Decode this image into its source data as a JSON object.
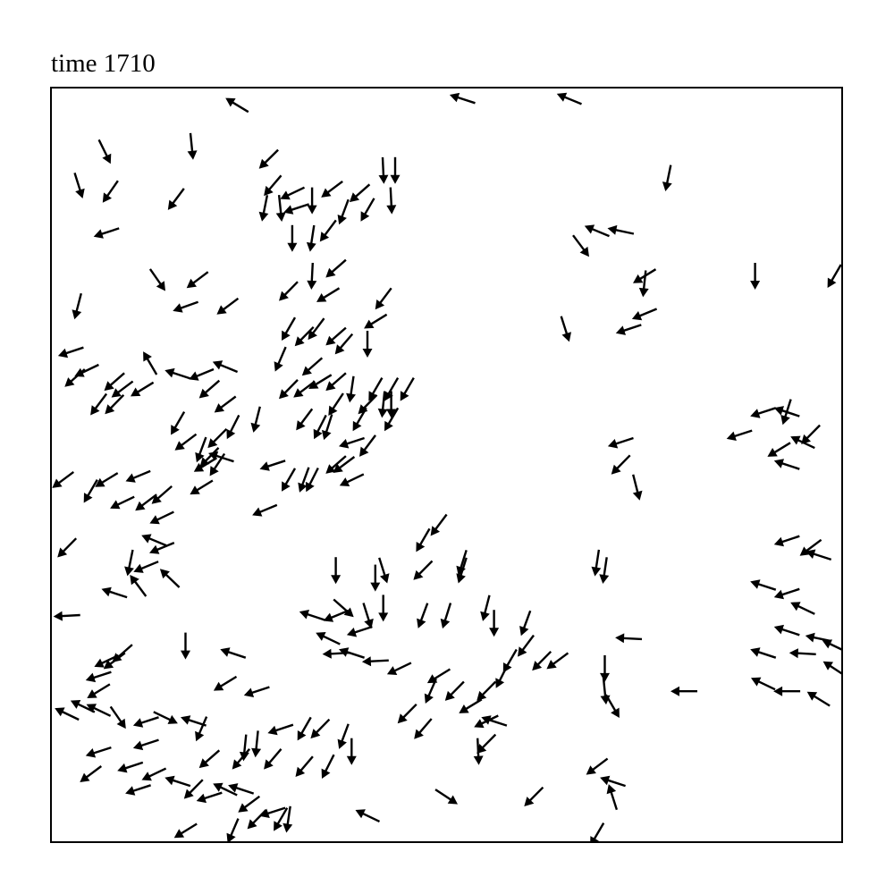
{
  "chart_data": {
    "type": "quiver",
    "title": "time 1710",
    "xlabel": "",
    "ylabel": "",
    "xlim": [
      0,
      1
    ],
    "ylim": [
      0,
      1
    ],
    "grid": false,
    "show_ticks": false,
    "arrow_color": "#000000",
    "frame_color": "#000000",
    "arrows": [
      [
        0.235,
        0.977,
        -0.85,
        0.52
      ],
      [
        0.52,
        0.985,
        -0.95,
        0.31
      ],
      [
        0.655,
        0.985,
        -0.92,
        0.38
      ],
      [
        0.068,
        0.915,
        0.44,
        -0.9
      ],
      [
        0.178,
        0.922,
        0.1,
        -0.99
      ],
      [
        0.035,
        0.87,
        0.3,
        -0.95
      ],
      [
        0.075,
        0.862,
        -0.57,
        -0.82
      ],
      [
        0.158,
        0.852,
        -0.6,
        -0.8
      ],
      [
        0.07,
        0.808,
        -0.95,
        -0.31
      ],
      [
        0.135,
        0.745,
        0.57,
        -0.82
      ],
      [
        0.185,
        0.745,
        -0.8,
        -0.6
      ],
      [
        0.17,
        0.71,
        -0.94,
        -0.34
      ],
      [
        0.223,
        0.71,
        -0.8,
        -0.6
      ],
      [
        0.275,
        0.905,
        -0.71,
        -0.7
      ],
      [
        0.28,
        0.87,
        -0.65,
        -0.76
      ],
      [
        0.305,
        0.86,
        -0.9,
        -0.43
      ],
      [
        0.27,
        0.84,
        -0.2,
        -0.98
      ],
      [
        0.29,
        0.84,
        0.1,
        -0.99
      ],
      [
        0.31,
        0.84,
        -0.95,
        -0.31
      ],
      [
        0.33,
        0.85,
        0.0,
        -1.0
      ],
      [
        0.355,
        0.865,
        -0.8,
        -0.6
      ],
      [
        0.39,
        0.86,
        -0.75,
        -0.66
      ],
      [
        0.42,
        0.89,
        0.05,
        -1.0
      ],
      [
        0.435,
        0.89,
        0.0,
        -1.0
      ],
      [
        0.43,
        0.85,
        0.05,
        -1.0
      ],
      [
        0.4,
        0.838,
        -0.5,
        -0.86
      ],
      [
        0.37,
        0.835,
        -0.35,
        -0.94
      ],
      [
        0.35,
        0.81,
        -0.6,
        -0.8
      ],
      [
        0.33,
        0.8,
        -0.15,
        -0.99
      ],
      [
        0.305,
        0.8,
        0.0,
        -1.0
      ],
      [
        0.36,
        0.76,
        -0.75,
        -0.66
      ],
      [
        0.3,
        0.73,
        -0.7,
        -0.71
      ],
      [
        0.33,
        0.75,
        -0.05,
        -1.0
      ],
      [
        0.35,
        0.725,
        -0.85,
        -0.52
      ],
      [
        0.32,
        0.67,
        -0.7,
        -0.71
      ],
      [
        0.335,
        0.68,
        -0.6,
        -0.8
      ],
      [
        0.36,
        0.67,
        -0.75,
        -0.66
      ],
      [
        0.37,
        0.66,
        -0.65,
        -0.76
      ],
      [
        0.42,
        0.72,
        -0.6,
        -0.8
      ],
      [
        0.41,
        0.69,
        -0.85,
        -0.52
      ],
      [
        0.4,
        0.66,
        0.0,
        -1.0
      ],
      [
        0.3,
        0.68,
        -0.5,
        -0.86
      ],
      [
        0.29,
        0.64,
        -0.4,
        -0.92
      ],
      [
        0.33,
        0.63,
        -0.75,
        -0.66
      ],
      [
        0.34,
        0.61,
        -0.85,
        -0.52
      ],
      [
        0.36,
        0.61,
        -0.75,
        -0.66
      ],
      [
        0.38,
        0.6,
        -0.15,
        -0.99
      ],
      [
        0.3,
        0.6,
        -0.7,
        -0.71
      ],
      [
        0.32,
        0.6,
        -0.8,
        -0.6
      ],
      [
        0.034,
        0.71,
        -0.25,
        -0.97
      ],
      [
        0.025,
        0.65,
        -0.95,
        -0.31
      ],
      [
        0.045,
        0.625,
        -0.9,
        -0.43
      ],
      [
        0.03,
        0.615,
        -0.75,
        -0.66
      ],
      [
        0.08,
        0.61,
        -0.75,
        -0.66
      ],
      [
        0.06,
        0.58,
        -0.6,
        -0.8
      ],
      [
        0.09,
        0.6,
        -0.8,
        -0.6
      ],
      [
        0.115,
        0.6,
        -0.85,
        -0.52
      ],
      [
        0.125,
        0.635,
        -0.5,
        0.86
      ],
      [
        0.16,
        0.62,
        -0.95,
        0.31
      ],
      [
        0.19,
        0.62,
        -0.92,
        -0.38
      ],
      [
        0.2,
        0.6,
        -0.75,
        -0.66
      ],
      [
        0.22,
        0.63,
        -0.92,
        0.38
      ],
      [
        0.16,
        0.555,
        -0.5,
        -0.86
      ],
      [
        0.08,
        0.58,
        -0.7,
        -0.71
      ],
      [
        0.22,
        0.58,
        -0.8,
        -0.6
      ],
      [
        0.26,
        0.56,
        -0.25,
        -0.97
      ],
      [
        0.23,
        0.55,
        -0.45,
        -0.89
      ],
      [
        0.21,
        0.535,
        -0.7,
        -0.71
      ],
      [
        0.17,
        0.53,
        -0.8,
        -0.6
      ],
      [
        0.19,
        0.52,
        -0.35,
        -0.94
      ],
      [
        0.195,
        0.5,
        -0.85,
        -0.52
      ],
      [
        0.21,
        0.5,
        -0.55,
        -0.83
      ],
      [
        0.28,
        0.5,
        -0.95,
        -0.31
      ],
      [
        0.2,
        0.51,
        -0.7,
        -0.71
      ],
      [
        0.19,
        0.47,
        -0.85,
        -0.52
      ],
      [
        0.215,
        0.51,
        -0.95,
        0.31
      ],
      [
        0.015,
        0.48,
        -0.8,
        -0.6
      ],
      [
        0.05,
        0.465,
        -0.5,
        -0.86
      ],
      [
        0.07,
        0.48,
        -0.85,
        -0.52
      ],
      [
        0.09,
        0.45,
        -0.9,
        -0.43
      ],
      [
        0.12,
        0.45,
        -0.8,
        -0.6
      ],
      [
        0.11,
        0.485,
        -0.92,
        -0.38
      ],
      [
        0.14,
        0.46,
        -0.75,
        -0.66
      ],
      [
        0.14,
        0.43,
        -0.9,
        -0.43
      ],
      [
        0.27,
        0.44,
        -0.92,
        -0.38
      ],
      [
        0.3,
        0.48,
        -0.5,
        -0.86
      ],
      [
        0.32,
        0.48,
        -0.35,
        -0.94
      ],
      [
        0.33,
        0.48,
        -0.45,
        -0.89
      ],
      [
        0.36,
        0.5,
        -0.75,
        -0.66
      ],
      [
        0.38,
        0.48,
        -0.9,
        -0.43
      ],
      [
        0.37,
        0.5,
        -0.8,
        -0.6
      ],
      [
        0.38,
        0.53,
        -0.95,
        -0.31
      ],
      [
        0.39,
        0.56,
        -0.5,
        -0.86
      ],
      [
        0.4,
        0.58,
        -0.7,
        -0.71
      ],
      [
        0.42,
        0.58,
        -0.1,
        -0.99
      ],
      [
        0.43,
        0.58,
        0.0,
        -1.0
      ],
      [
        0.36,
        0.58,
        -0.55,
        -0.83
      ],
      [
        0.35,
        0.55,
        -0.3,
        -0.95
      ],
      [
        0.34,
        0.55,
        -0.45,
        -0.89
      ],
      [
        0.32,
        0.56,
        -0.6,
        -0.8
      ],
      [
        0.4,
        0.525,
        -0.6,
        -0.8
      ],
      [
        0.41,
        0.6,
        -0.5,
        -0.86
      ],
      [
        0.02,
        0.39,
        -0.7,
        -0.71
      ],
      [
        0.1,
        0.37,
        -0.2,
        -0.98
      ],
      [
        0.08,
        0.33,
        -0.95,
        0.31
      ],
      [
        0.12,
        0.365,
        -0.92,
        -0.38
      ],
      [
        0.14,
        0.39,
        -0.92,
        -0.38
      ],
      [
        0.13,
        0.4,
        -0.92,
        0.38
      ],
      [
        0.15,
        0.35,
        -0.72,
        0.69
      ],
      [
        0.11,
        0.34,
        -0.6,
        0.8
      ],
      [
        0.02,
        0.3,
        -0.95,
        -0.05
      ],
      [
        0.07,
        0.24,
        -0.9,
        -0.43
      ],
      [
        0.06,
        0.22,
        -0.95,
        -0.31
      ],
      [
        0.08,
        0.24,
        -0.8,
        -0.6
      ],
      [
        0.09,
        0.25,
        -0.75,
        -0.66
      ],
      [
        0.06,
        0.2,
        -0.85,
        -0.52
      ],
      [
        0.02,
        0.17,
        -0.9,
        0.43
      ],
      [
        0.04,
        0.18,
        -0.9,
        0.43
      ],
      [
        0.06,
        0.175,
        -0.9,
        0.43
      ],
      [
        0.085,
        0.165,
        0.57,
        -0.82
      ],
      [
        0.12,
        0.16,
        -0.95,
        -0.31
      ],
      [
        0.145,
        0.165,
        0.9,
        -0.43
      ],
      [
        0.18,
        0.16,
        -0.95,
        0.31
      ],
      [
        0.19,
        0.15,
        -0.4,
        -0.92
      ],
      [
        0.17,
        0.26,
        0.0,
        -1.0
      ],
      [
        0.23,
        0.25,
        -0.95,
        0.31
      ],
      [
        0.22,
        0.21,
        -0.85,
        -0.52
      ],
      [
        0.26,
        0.2,
        -0.95,
        -0.31
      ],
      [
        0.12,
        0.13,
        -0.95,
        -0.31
      ],
      [
        0.06,
        0.12,
        -0.95,
        -0.31
      ],
      [
        0.1,
        0.1,
        -0.95,
        -0.31
      ],
      [
        0.05,
        0.09,
        -0.8,
        -0.6
      ],
      [
        0.13,
        0.09,
        -0.9,
        -0.43
      ],
      [
        0.11,
        0.07,
        -0.95,
        -0.31
      ],
      [
        0.16,
        0.08,
        -0.95,
        0.31
      ],
      [
        0.18,
        0.07,
        -0.7,
        -0.71
      ],
      [
        0.2,
        0.06,
        -0.95,
        -0.31
      ],
      [
        0.22,
        0.07,
        -0.9,
        0.43
      ],
      [
        0.24,
        0.07,
        -0.95,
        0.31
      ],
      [
        0.25,
        0.05,
        -0.8,
        -0.6
      ],
      [
        0.28,
        0.04,
        -0.95,
        -0.31
      ],
      [
        0.29,
        0.03,
        -0.5,
        -0.86
      ],
      [
        0.3,
        0.03,
        -0.15,
        -0.99
      ],
      [
        0.26,
        0.03,
        -0.7,
        -0.71
      ],
      [
        0.17,
        0.015,
        -0.85,
        -0.52
      ],
      [
        0.23,
        0.015,
        -0.4,
        -0.92
      ],
      [
        0.245,
        0.125,
        -0.1,
        -0.99
      ],
      [
        0.26,
        0.13,
        -0.1,
        -0.99
      ],
      [
        0.29,
        0.15,
        -0.95,
        -0.31
      ],
      [
        0.32,
        0.15,
        -0.5,
        -0.86
      ],
      [
        0.34,
        0.15,
        -0.7,
        -0.71
      ],
      [
        0.37,
        0.14,
        -0.35,
        -0.94
      ],
      [
        0.38,
        0.12,
        0.0,
        -1.0
      ],
      [
        0.32,
        0.1,
        -0.65,
        -0.76
      ],
      [
        0.35,
        0.1,
        -0.45,
        -0.89
      ],
      [
        0.28,
        0.11,
        -0.65,
        -0.76
      ],
      [
        0.24,
        0.11,
        -0.65,
        -0.76
      ],
      [
        0.2,
        0.11,
        -0.75,
        -0.66
      ],
      [
        0.33,
        0.3,
        -0.95,
        0.31
      ],
      [
        0.36,
        0.3,
        -0.92,
        -0.38
      ],
      [
        0.35,
        0.27,
        -0.9,
        0.43
      ],
      [
        0.36,
        0.25,
        -0.95,
        -0.05
      ],
      [
        0.38,
        0.25,
        -0.95,
        0.31
      ],
      [
        0.39,
        0.28,
        -0.95,
        -0.31
      ],
      [
        0.41,
        0.24,
        -0.95,
        -0.05
      ],
      [
        0.44,
        0.23,
        -0.9,
        -0.43
      ],
      [
        0.48,
        0.2,
        -0.4,
        -0.92
      ],
      [
        0.47,
        0.15,
        -0.65,
        -0.76
      ],
      [
        0.45,
        0.17,
        -0.7,
        -0.71
      ],
      [
        0.4,
        0.3,
        0.3,
        -0.95
      ],
      [
        0.42,
        0.31,
        0.0,
        -1.0
      ],
      [
        0.37,
        0.31,
        0.75,
        -0.66
      ],
      [
        0.47,
        0.3,
        -0.35,
        -0.94
      ],
      [
        0.5,
        0.3,
        -0.3,
        -0.95
      ],
      [
        0.36,
        0.36,
        0.0,
        -1.0
      ],
      [
        0.41,
        0.35,
        0.0,
        -1.0
      ],
      [
        0.42,
        0.36,
        0.3,
        -0.95
      ],
      [
        0.47,
        0.36,
        -0.7,
        -0.71
      ],
      [
        0.52,
        0.36,
        -0.3,
        -0.95
      ],
      [
        0.47,
        0.4,
        -0.5,
        -0.86
      ],
      [
        0.49,
        0.22,
        -0.85,
        -0.52
      ],
      [
        0.51,
        0.2,
        -0.7,
        -0.71
      ],
      [
        0.53,
        0.18,
        -0.85,
        -0.52
      ],
      [
        0.55,
        0.16,
        -0.9,
        -0.43
      ],
      [
        0.54,
        0.12,
        0.05,
        -1.0
      ],
      [
        0.55,
        0.13,
        -0.7,
        -0.71
      ],
      [
        0.56,
        0.16,
        -0.95,
        0.31
      ],
      [
        0.55,
        0.2,
        -0.7,
        -0.71
      ],
      [
        0.57,
        0.22,
        -0.45,
        -0.89
      ],
      [
        0.58,
        0.24,
        -0.5,
        -0.86
      ],
      [
        0.6,
        0.26,
        -0.6,
        -0.8
      ],
      [
        0.6,
        0.29,
        -0.35,
        -0.94
      ],
      [
        0.56,
        0.29,
        0.0,
        -1.0
      ],
      [
        0.64,
        0.24,
        -0.8,
        -0.6
      ],
      [
        0.62,
        0.24,
        -0.7,
        -0.71
      ],
      [
        0.55,
        0.31,
        -0.25,
        -0.97
      ],
      [
        0.7,
        0.23,
        0.0,
        -1.0
      ],
      [
        0.7,
        0.2,
        0.1,
        -0.99
      ],
      [
        0.71,
        0.18,
        0.5,
        -0.86
      ],
      [
        0.5,
        0.06,
        0.84,
        -0.55
      ],
      [
        0.4,
        0.035,
        -0.9,
        0.43
      ],
      [
        0.61,
        0.06,
        -0.7,
        -0.71
      ],
      [
        0.69,
        0.1,
        -0.8,
        -0.6
      ],
      [
        0.71,
        0.08,
        -0.95,
        0.31
      ],
      [
        0.71,
        0.06,
        -0.3,
        0.95
      ],
      [
        0.69,
        0.01,
        -0.5,
        -0.86
      ],
      [
        0.73,
        0.27,
        -0.95,
        0.05
      ],
      [
        0.69,
        0.37,
        -0.15,
        -0.99
      ],
      [
        0.7,
        0.36,
        -0.15,
        -0.99
      ],
      [
        0.52,
        0.37,
        -0.3,
        -0.95
      ],
      [
        0.49,
        0.42,
        -0.6,
        -0.8
      ],
      [
        0.43,
        0.6,
        -0.5,
        -0.86
      ],
      [
        0.43,
        0.56,
        -0.5,
        -0.86
      ],
      [
        0.45,
        0.6,
        -0.5,
        -0.86
      ],
      [
        0.74,
        0.47,
        0.25,
        -0.97
      ],
      [
        0.72,
        0.5,
        -0.7,
        -0.71
      ],
      [
        0.72,
        0.53,
        -0.95,
        -0.31
      ],
      [
        0.65,
        0.68,
        0.3,
        -0.95
      ],
      [
        0.73,
        0.68,
        -0.95,
        -0.31
      ],
      [
        0.75,
        0.74,
        -0.1,
        -0.99
      ],
      [
        0.75,
        0.7,
        -0.92,
        -0.38
      ],
      [
        0.67,
        0.79,
        0.6,
        -0.8
      ],
      [
        0.69,
        0.81,
        -0.92,
        0.38
      ],
      [
        0.72,
        0.81,
        -0.95,
        0.2
      ],
      [
        0.75,
        0.75,
        -0.85,
        -0.52
      ],
      [
        0.78,
        0.88,
        -0.2,
        -0.98
      ],
      [
        0.89,
        0.75,
        0.0,
        -1.0
      ],
      [
        0.99,
        0.75,
        -0.5,
        -0.86
      ],
      [
        0.9,
        0.57,
        -0.95,
        -0.31
      ],
      [
        0.87,
        0.54,
        -0.95,
        -0.31
      ],
      [
        0.93,
        0.57,
        -0.95,
        0.31
      ],
      [
        0.95,
        0.53,
        -0.9,
        0.43
      ],
      [
        0.93,
        0.5,
        -0.95,
        0.31
      ],
      [
        0.93,
        0.57,
        -0.3,
        -0.95
      ],
      [
        0.96,
        0.54,
        -0.7,
        -0.71
      ],
      [
        0.92,
        0.52,
        -0.85,
        -0.52
      ],
      [
        0.93,
        0.4,
        -0.95,
        -0.31
      ],
      [
        0.96,
        0.39,
        -0.8,
        -0.6
      ],
      [
        0.97,
        0.38,
        -0.95,
        0.31
      ],
      [
        0.9,
        0.34,
        -0.95,
        0.31
      ],
      [
        0.93,
        0.33,
        -0.95,
        -0.31
      ],
      [
        0.95,
        0.31,
        -0.9,
        0.43
      ],
      [
        0.93,
        0.28,
        -0.95,
        0.31
      ],
      [
        0.97,
        0.27,
        -0.95,
        0.2
      ],
      [
        0.99,
        0.26,
        -0.9,
        0.43
      ],
      [
        0.95,
        0.25,
        -0.95,
        0.05
      ],
      [
        0.99,
        0.23,
        -0.84,
        0.55
      ],
      [
        0.9,
        0.25,
        -0.95,
        0.31
      ],
      [
        0.93,
        0.2,
        -0.95,
        0.0
      ],
      [
        0.9,
        0.21,
        -0.9,
        0.43
      ],
      [
        0.97,
        0.19,
        -0.85,
        0.52
      ],
      [
        0.8,
        0.2,
        -0.95,
        0.0
      ]
    ]
  }
}
